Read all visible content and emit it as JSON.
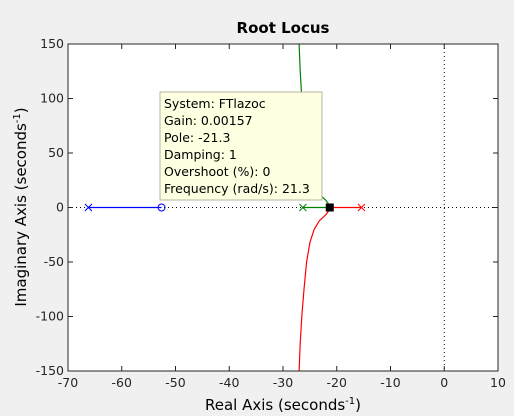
{
  "chart_data": {
    "type": "line",
    "title": "Root Locus",
    "xlabel": "Real Axis (seconds",
    "ylabel": "Imaginary Axis (seconds",
    "axis_unit_exponent": "-1",
    "xlim": [
      -70,
      10
    ],
    "ylim": [
      -150,
      150
    ],
    "xticks": [
      -70,
      -60,
      -50,
      -40,
      -30,
      -20,
      -10,
      0,
      10
    ],
    "yticks": [
      -150,
      -100,
      -50,
      0,
      50,
      100,
      150
    ],
    "grid": false,
    "zero_line_style": "dotted",
    "poles": [
      [
        -66.2,
        0
      ],
      [
        -26.3,
        0
      ],
      [
        -15.4,
        0
      ]
    ],
    "zeros": [
      [
        -52.6,
        0
      ]
    ],
    "series": [
      {
        "color": "#0000ff",
        "points": [
          [
            -66.2,
            0
          ],
          [
            -52.6,
            0
          ]
        ]
      },
      {
        "color": "#008000",
        "points": [
          [
            -26.3,
            0
          ],
          [
            -21.3,
            0
          ],
          [
            -21.3,
            0.6
          ],
          [
            -21.5,
            3
          ],
          [
            -22.1,
            7
          ],
          [
            -23.2,
            12
          ],
          [
            -24.2,
            20
          ],
          [
            -25.0,
            32
          ],
          [
            -25.6,
            50
          ],
          [
            -26.1,
            75
          ],
          [
            -26.5,
            100
          ],
          [
            -26.8,
            125
          ],
          [
            -27.0,
            150
          ]
        ]
      },
      {
        "color": "#ff0000",
        "points": [
          [
            -15.4,
            0
          ],
          [
            -21.3,
            0
          ],
          [
            -21.3,
            -0.6
          ],
          [
            -21.5,
            -3
          ],
          [
            -22.1,
            -7
          ],
          [
            -23.2,
            -12
          ],
          [
            -24.2,
            -20
          ],
          [
            -25.0,
            -32
          ],
          [
            -25.6,
            -50
          ],
          [
            -26.1,
            -75
          ],
          [
            -26.5,
            -100
          ],
          [
            -26.8,
            -125
          ],
          [
            -27.0,
            -150
          ]
        ]
      }
    ],
    "selected_point": [
      -21.3,
      0
    ],
    "datatip": [
      "System: FTlazoc",
      "Gain: 0.00157",
      "Pole: -21.3",
      "Damping: 1",
      "Overshoot (%): 0",
      "Frequency (rad/s): 21.3"
    ]
  }
}
